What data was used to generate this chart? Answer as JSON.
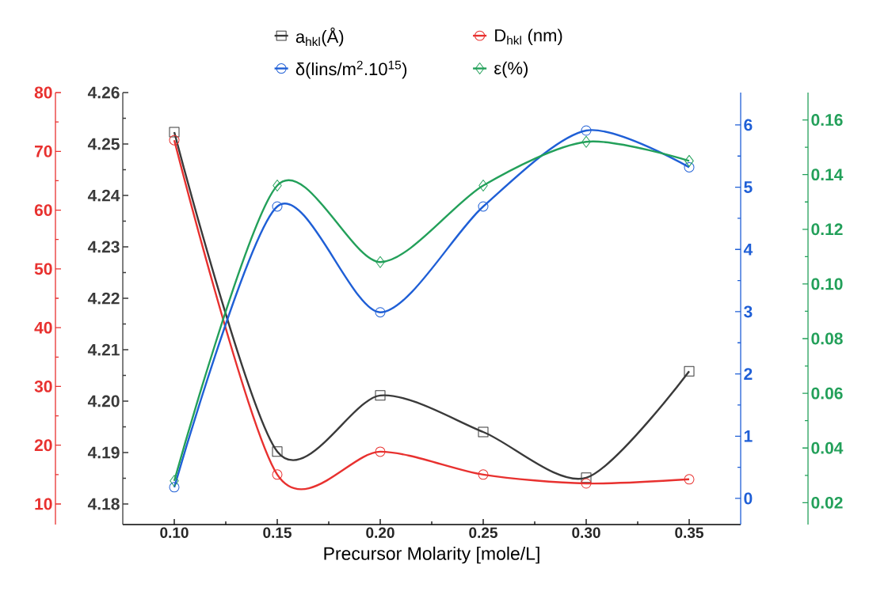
{
  "chart_data": [
    {
      "type": "line",
      "xlabel": "Precursor Molarity [mole/L]",
      "x": [
        0.1,
        0.15,
        0.2,
        0.25,
        0.3,
        0.35
      ],
      "xlim": [
        0.075,
        0.375
      ],
      "xticks": [
        {
          "value": 0.1,
          "label": "0.10"
        },
        0.15,
        {
          "value": 0.2,
          "label": "0.20"
        },
        0.25,
        {
          "value": 0.3,
          "label": "0.30"
        },
        0.35
      ],
      "ylim": [
        4.176,
        4.26
      ],
      "yticks": [
        4.18,
        4.19,
        {
          "value": 4.2,
          "label": "4.20"
        },
        4.21,
        4.22,
        4.23,
        4.24,
        4.25,
        4.26
      ],
      "y2lim": [
        6.5,
        80
      ],
      "y2ticks": [
        10,
        20,
        30,
        40,
        50,
        60,
        70,
        80
      ],
      "legend": "top",
      "line_style": "solid",
      "series": [
        {
          "name": "a$_{hkl}$(Å)",
          "color": "#3a3a3a",
          "marker": "square",
          "values": [
            4.2523,
            4.1902,
            4.2011,
            4.194,
            4.1851,
            4.2058
          ]
        },
        {
          "name": "D$_{hkl}$ (nm)",
          "color": "#e8312f",
          "axis": "y2",
          "marker": "circle",
          "values": [
            71.9,
            15.0,
            18.9,
            15.0,
            13.5,
            14.2
          ]
        }
      ]
    },
    {
      "type": "line",
      "x": [
        0.1,
        0.15,
        0.2,
        0.25,
        0.3,
        0.35
      ],
      "xlim": [
        0.075,
        0.375
      ],
      "tick_labels": "y",
      "ylim": [
        -0.42,
        6.52
      ],
      "yticks": [
        0,
        1,
        2,
        3,
        4,
        5,
        6
      ],
      "y2lim": [
        0.012,
        0.17
      ],
      "y2ticks": [
        0.02,
        0.04,
        0.06,
        0.08,
        {
          "value": 0.1,
          "label": "0.10"
        },
        0.12,
        0.14,
        0.16
      ],
      "legend": "top",
      "line_style": "solid",
      "series": [
        {
          "name": "δ(lins/m$^{2}$.10$^{15}$)",
          "color": "#1f5fd6",
          "marker": "circle",
          "values": [
            0.18,
            4.69,
            2.99,
            4.69,
            5.91,
            5.32
          ]
        },
        {
          "name": "ε(%)",
          "color": "#23a05a",
          "axis": "y2",
          "marker": "diamond",
          "values": [
            0.028,
            0.136,
            0.108,
            0.136,
            0.152,
            0.145
          ]
        }
      ]
    }
  ]
}
